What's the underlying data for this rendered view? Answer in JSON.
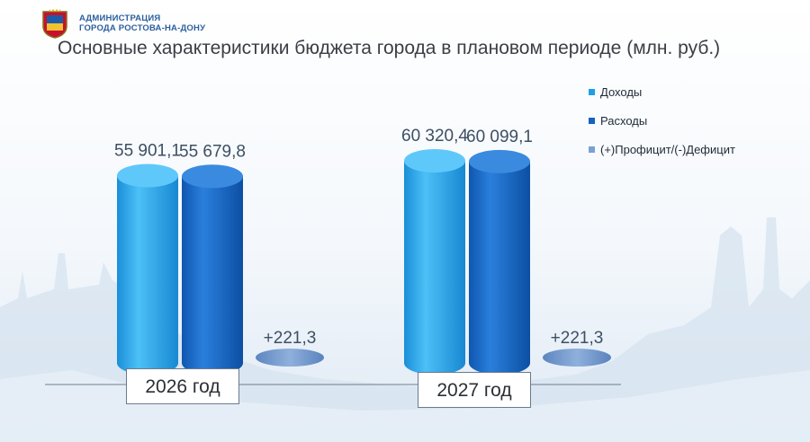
{
  "header": {
    "org_line1": "АДМИНИСТРАЦИЯ",
    "org_line2": "ГОРОДА РОСТОВА-НА-ДОНУ",
    "crest_icon": "city-crest-icon"
  },
  "chart_data": {
    "type": "bar",
    "title": "Основные характеристики бюджета города в плановом периоде (млн. руб.)",
    "categories": [
      "2026 год",
      "2027 год"
    ],
    "series": [
      {
        "name": "Доходы",
        "values": [
          55901.1,
          60320.4
        ],
        "labels": [
          "55 901,1",
          "60 320,4"
        ],
        "color": "#1f9fe8"
      },
      {
        "name": "Расходы",
        "values": [
          55679.8,
          60099.1
        ],
        "labels": [
          "55 679,8",
          "60 099,1"
        ],
        "color": "#1463c2"
      },
      {
        "name": "(+)Профицит/(-)Дефицит",
        "values": [
          221.3,
          221.3
        ],
        "labels": [
          "+221,3",
          "+221,3"
        ],
        "color": "#6f96cc"
      }
    ],
    "legend_position": "right",
    "grid": false
  }
}
